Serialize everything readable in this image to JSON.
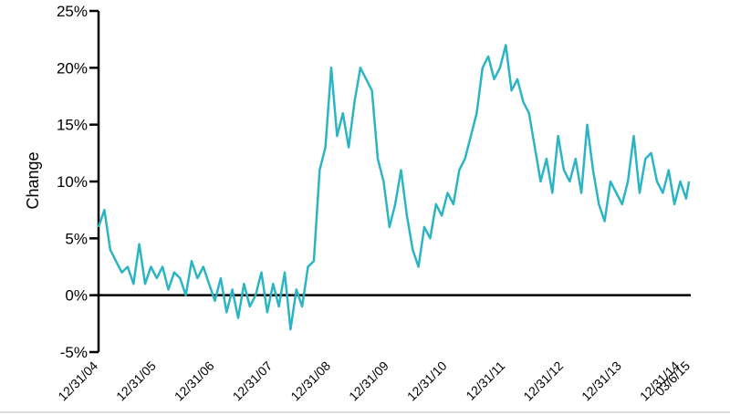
{
  "chart_data": {
    "type": "line",
    "ylabel": "Change",
    "x": [
      2005,
      2005.1,
      2005.2,
      2005.3,
      2005.4,
      2005.5,
      2005.6,
      2005.7,
      2005.8,
      2005.9,
      2006,
      2006.1,
      2006.2,
      2006.3,
      2006.4,
      2006.5,
      2006.6,
      2006.7,
      2006.8,
      2006.9,
      2007,
      2007.1,
      2007.2,
      2007.3,
      2007.4,
      2007.5,
      2007.6,
      2007.7,
      2007.8,
      2007.9,
      2008,
      2008.1,
      2008.2,
      2008.3,
      2008.4,
      2008.5,
      2008.6,
      2008.7,
      2008.8,
      2008.9,
      2009,
      2009.1,
      2009.2,
      2009.3,
      2009.4,
      2009.5,
      2009.6,
      2009.7,
      2009.8,
      2009.9,
      2010,
      2010.1,
      2010.2,
      2010.3,
      2010.4,
      2010.5,
      2010.6,
      2010.7,
      2010.8,
      2010.9,
      2011,
      2011.1,
      2011.2,
      2011.3,
      2011.4,
      2011.5,
      2011.6,
      2011.7,
      2011.8,
      2011.9,
      2012,
      2012.1,
      2012.2,
      2012.3,
      2012.4,
      2012.5,
      2012.6,
      2012.7,
      2012.8,
      2012.9,
      2013,
      2013.1,
      2013.2,
      2013.3,
      2013.4,
      2013.5,
      2013.6,
      2013.7,
      2013.8,
      2013.9,
      2014,
      2014.1,
      2014.2,
      2014.3,
      2014.4,
      2014.5,
      2014.6,
      2014.7,
      2014.8,
      2014.9,
      2015,
      2015.1,
      2015.15
    ],
    "series": [
      {
        "name": "Change",
        "color": "#2bb5c4",
        "values": [
          6,
          7.5,
          4,
          3,
          2,
          2.5,
          1,
          4.5,
          1,
          2.5,
          1.5,
          2.5,
          0.5,
          2,
          1.5,
          0,
          3,
          1.5,
          2.5,
          1,
          -0.5,
          1.5,
          -1.5,
          0.5,
          -2,
          1,
          -1,
          0,
          2,
          -1.5,
          1,
          -1,
          2,
          -3,
          0.5,
          -1,
          2.5,
          3,
          11,
          13,
          20,
          14,
          16,
          13,
          17,
          20,
          19,
          18,
          12,
          10,
          6,
          8,
          11,
          7,
          4,
          2.5,
          6,
          5,
          8,
          7,
          9,
          8,
          11,
          12,
          14,
          16,
          20,
          21,
          19,
          20,
          22,
          18,
          19,
          17,
          16,
          13,
          10,
          12,
          9,
          14,
          11,
          10,
          12,
          9,
          15,
          11,
          8,
          6.5,
          10,
          9,
          8,
          10,
          14,
          9,
          12,
          12.5,
          10,
          9,
          11,
          8,
          10,
          8.5,
          10
        ]
      }
    ],
    "xlim": [
      2005,
      2015.18
    ],
    "xticks": [
      {
        "value": 2005,
        "label": "12/31/04"
      },
      {
        "value": 2006,
        "label": "12/31/05"
      },
      {
        "value": 2007,
        "label": "12/31/06"
      },
      {
        "value": 2008,
        "label": "12/31/07"
      },
      {
        "value": 2009,
        "label": "12/31/08"
      },
      {
        "value": 2010,
        "label": "12/31/09"
      },
      {
        "value": 2011,
        "label": "12/31/10"
      },
      {
        "value": 2012,
        "label": "12/31/11"
      },
      {
        "value": 2013,
        "label": "12/31/12"
      },
      {
        "value": 2014,
        "label": "12/31/13"
      },
      {
        "value": 2015,
        "label": "12/31/14"
      },
      {
        "value": 2015.18,
        "label": "03/6/15"
      }
    ],
    "ylim": [
      -5,
      25
    ],
    "yticks": [
      {
        "value": -5,
        "label": "-5%"
      },
      {
        "value": 0,
        "label": "0%"
      },
      {
        "value": 5,
        "label": "5%"
      },
      {
        "value": 10,
        "label": "10%"
      },
      {
        "value": 15,
        "label": "15%"
      },
      {
        "value": 20,
        "label": "20%"
      },
      {
        "value": 25,
        "label": "25%"
      }
    ],
    "grid": false
  }
}
